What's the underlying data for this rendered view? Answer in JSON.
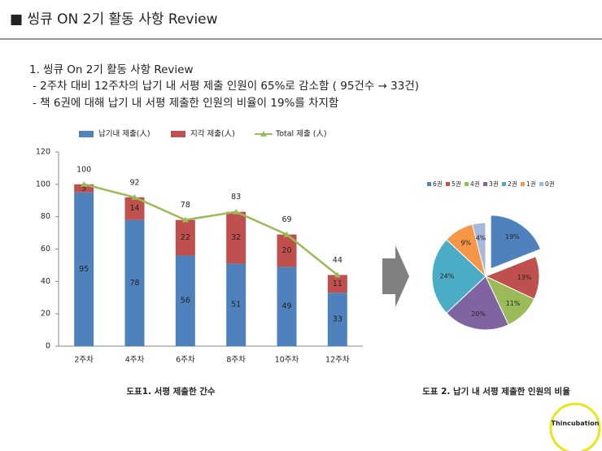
{
  "header": {
    "title": "■ 씽큐 ON 2기 활동 사항 Review"
  },
  "body": {
    "heading": "1. 씽큐 On 2기 활동 사항 Review",
    "bullets": [
      "- 2주차 대비 12주차의 납기 내 서평 제출 인원이 65%로 감소함 ( 95건수 → 33건)",
      "- 책 6권에 대해 납기 내 서평 제출한 인원의 비율이 19%를 차지함"
    ]
  },
  "chart_data": [
    {
      "type": "bar",
      "stacked": true,
      "caption": "도표1. 서평 제출한  간수",
      "categories": [
        "2주차",
        "4주차",
        "6주차",
        "8주차",
        "10주차",
        "12주차"
      ],
      "series": [
        {
          "name": "납기내 제출(人)",
          "color": "#4f81bd",
          "values": [
            95,
            78,
            56,
            51,
            49,
            33
          ]
        },
        {
          "name": "지각 제출(人)",
          "color": "#c0504d",
          "values": [
            5,
            14,
            22,
            32,
            20,
            11
          ]
        },
        {
          "name": "Total 제출 (人)",
          "type": "line",
          "color": "#9bbb59",
          "values": [
            100,
            92,
            78,
            83,
            69,
            44
          ]
        }
      ],
      "ylim": [
        0,
        120
      ],
      "yticks": [
        0,
        20,
        40,
        60,
        80,
        100,
        120
      ],
      "grid": false,
      "legend": "top"
    },
    {
      "type": "pie",
      "caption": "도표 2. 납기 내 서평 제출한 인원의 비율",
      "categories": [
        "6권",
        "5권",
        "4권",
        "3권",
        "2권",
        "1권",
        "0권"
      ],
      "values": [
        19,
        13,
        11,
        20,
        24,
        9,
        4
      ],
      "value_labels": [
        "19%",
        "13%",
        "11%",
        "20%",
        "24%",
        "9%",
        "4%"
      ],
      "colors": [
        "#4f81bd",
        "#c0504d",
        "#9bbb59",
        "#8064a2",
        "#4bacc6",
        "#f79646",
        "#a6b9db"
      ],
      "legend": "top"
    }
  ],
  "logo": {
    "text": "Thincubation"
  }
}
